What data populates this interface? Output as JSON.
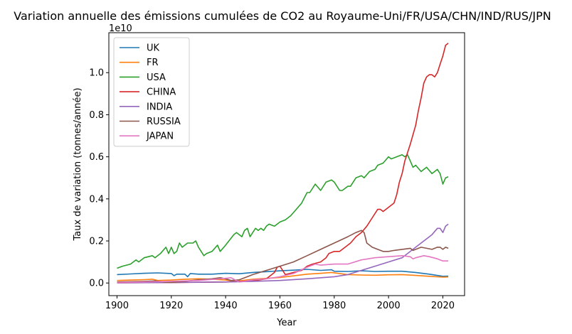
{
  "chart_data": {
    "type": "line",
    "title": "Variation annuelle des émissions cumulées de CO2 au Royaume-Uni/FR/USA/CHN/IND/RUS/JPN",
    "xlabel": "Year",
    "ylabel": "Taux de variation (tonnes/année)",
    "y_offset_label": "1e10",
    "xlim": [
      1897,
      2028
    ],
    "ylim": [
      -0.06,
      1.19
    ],
    "x_ticks": [
      1900,
      1920,
      1940,
      1960,
      1980,
      2000,
      2020
    ],
    "x_tick_labels": [
      "1900",
      "1920",
      "1940",
      "1960",
      "1980",
      "2000",
      "2020"
    ],
    "y_ticks": [
      0,
      0.2,
      0.4,
      0.6,
      0.8,
      1.0
    ],
    "y_tick_labels": [
      "0.0",
      "0.2",
      "0.4",
      "0.6",
      "0.8",
      "1.0"
    ],
    "grid": false,
    "legend_position": "upper-left",
    "series": [
      {
        "name": "UK",
        "color": "#1f77b4",
        "points": [
          [
            1900,
            0.04
          ],
          [
            1905,
            0.043
          ],
          [
            1910,
            0.046
          ],
          [
            1915,
            0.048
          ],
          [
            1920,
            0.045
          ],
          [
            1921,
            0.035
          ],
          [
            1922,
            0.042
          ],
          [
            1925,
            0.042
          ],
          [
            1926,
            0.03
          ],
          [
            1927,
            0.045
          ],
          [
            1930,
            0.042
          ],
          [
            1935,
            0.042
          ],
          [
            1940,
            0.046
          ],
          [
            1945,
            0.044
          ],
          [
            1950,
            0.05
          ],
          [
            1955,
            0.054
          ],
          [
            1960,
            0.058
          ],
          [
            1965,
            0.061
          ],
          [
            1970,
            0.065
          ],
          [
            1975,
            0.06
          ],
          [
            1979,
            0.063
          ],
          [
            1980,
            0.056
          ],
          [
            1985,
            0.055
          ],
          [
            1990,
            0.058
          ],
          [
            1995,
            0.055
          ],
          [
            2000,
            0.056
          ],
          [
            2005,
            0.056
          ],
          [
            2010,
            0.05
          ],
          [
            2015,
            0.042
          ],
          [
            2020,
            0.032
          ],
          [
            2022,
            0.033
          ]
        ]
      },
      {
        "name": "FR",
        "color": "#ff7f0e",
        "points": [
          [
            1900,
            0.012
          ],
          [
            1905,
            0.014
          ],
          [
            1910,
            0.016
          ],
          [
            1913,
            0.018
          ],
          [
            1915,
            0.012
          ],
          [
            1920,
            0.014
          ],
          [
            1925,
            0.018
          ],
          [
            1930,
            0.02
          ],
          [
            1935,
            0.018
          ],
          [
            1940,
            0.014
          ],
          [
            1944,
            0.008
          ],
          [
            1945,
            0.01
          ],
          [
            1950,
            0.018
          ],
          [
            1955,
            0.022
          ],
          [
            1960,
            0.026
          ],
          [
            1965,
            0.034
          ],
          [
            1970,
            0.042
          ],
          [
            1975,
            0.046
          ],
          [
            1979,
            0.05
          ],
          [
            1985,
            0.04
          ],
          [
            1990,
            0.038
          ],
          [
            1995,
            0.037
          ],
          [
            2000,
            0.039
          ],
          [
            2005,
            0.04
          ],
          [
            2010,
            0.036
          ],
          [
            2015,
            0.032
          ],
          [
            2020,
            0.028
          ],
          [
            2022,
            0.029
          ]
        ]
      },
      {
        "name": "USA",
        "color": "#2ca02c",
        "points": [
          [
            1900,
            0.07
          ],
          [
            1902,
            0.08
          ],
          [
            1905,
            0.09
          ],
          [
            1907,
            0.11
          ],
          [
            1908,
            0.1
          ],
          [
            1910,
            0.12
          ],
          [
            1913,
            0.13
          ],
          [
            1914,
            0.12
          ],
          [
            1916,
            0.14
          ],
          [
            1918,
            0.17
          ],
          [
            1919,
            0.14
          ],
          [
            1920,
            0.17
          ],
          [
            1921,
            0.14
          ],
          [
            1922,
            0.15
          ],
          [
            1923,
            0.19
          ],
          [
            1924,
            0.17
          ],
          [
            1926,
            0.19
          ],
          [
            1928,
            0.19
          ],
          [
            1929,
            0.2
          ],
          [
            1930,
            0.17
          ],
          [
            1932,
            0.13
          ],
          [
            1933,
            0.14
          ],
          [
            1935,
            0.15
          ],
          [
            1937,
            0.18
          ],
          [
            1938,
            0.15
          ],
          [
            1940,
            0.18
          ],
          [
            1943,
            0.23
          ],
          [
            1944,
            0.24
          ],
          [
            1946,
            0.22
          ],
          [
            1947,
            0.25
          ],
          [
            1948,
            0.26
          ],
          [
            1949,
            0.22
          ],
          [
            1950,
            0.24
          ],
          [
            1951,
            0.26
          ],
          [
            1952,
            0.25
          ],
          [
            1953,
            0.26
          ],
          [
            1954,
            0.25
          ],
          [
            1955,
            0.27
          ],
          [
            1956,
            0.28
          ],
          [
            1958,
            0.27
          ],
          [
            1960,
            0.29
          ],
          [
            1962,
            0.3
          ],
          [
            1964,
            0.32
          ],
          [
            1966,
            0.35
          ],
          [
            1968,
            0.38
          ],
          [
            1970,
            0.43
          ],
          [
            1971,
            0.43
          ],
          [
            1973,
            0.47
          ],
          [
            1975,
            0.44
          ],
          [
            1977,
            0.48
          ],
          [
            1979,
            0.49
          ],
          [
            1980,
            0.48
          ],
          [
            1982,
            0.44
          ],
          [
            1983,
            0.44
          ],
          [
            1985,
            0.46
          ],
          [
            1986,
            0.46
          ],
          [
            1988,
            0.5
          ],
          [
            1990,
            0.51
          ],
          [
            1991,
            0.5
          ],
          [
            1993,
            0.53
          ],
          [
            1995,
            0.54
          ],
          [
            1996,
            0.56
          ],
          [
            1998,
            0.57
          ],
          [
            2000,
            0.6
          ],
          [
            2001,
            0.59
          ],
          [
            2003,
            0.6
          ],
          [
            2005,
            0.61
          ],
          [
            2006,
            0.6
          ],
          [
            2007,
            0.61
          ],
          [
            2008,
            0.58
          ],
          [
            2009,
            0.55
          ],
          [
            2010,
            0.56
          ],
          [
            2012,
            0.53
          ],
          [
            2013,
            0.54
          ],
          [
            2014,
            0.55
          ],
          [
            2016,
            0.52
          ],
          [
            2018,
            0.54
          ],
          [
            2019,
            0.52
          ],
          [
            2020,
            0.47
          ],
          [
            2021,
            0.5
          ],
          [
            2022,
            0.505
          ]
        ]
      },
      {
        "name": "CHINA",
        "color": "#d62728",
        "points": [
          [
            1900,
            0.001
          ],
          [
            1920,
            0.002
          ],
          [
            1940,
            0.005
          ],
          [
            1950,
            0.01
          ],
          [
            1955,
            0.02
          ],
          [
            1958,
            0.05
          ],
          [
            1959,
            0.075
          ],
          [
            1960,
            0.08
          ],
          [
            1961,
            0.06
          ],
          [
            1962,
            0.04
          ],
          [
            1965,
            0.05
          ],
          [
            1968,
            0.06
          ],
          [
            1970,
            0.08
          ],
          [
            1972,
            0.09
          ],
          [
            1975,
            0.1
          ],
          [
            1977,
            0.12
          ],
          [
            1978,
            0.14
          ],
          [
            1980,
            0.15
          ],
          [
            1982,
            0.15
          ],
          [
            1984,
            0.17
          ],
          [
            1986,
            0.19
          ],
          [
            1988,
            0.22
          ],
          [
            1990,
            0.24
          ],
          [
            1992,
            0.27
          ],
          [
            1994,
            0.31
          ],
          [
            1996,
            0.35
          ],
          [
            1997,
            0.35
          ],
          [
            1998,
            0.34
          ],
          [
            2000,
            0.36
          ],
          [
            2002,
            0.38
          ],
          [
            2003,
            0.42
          ],
          [
            2004,
            0.48
          ],
          [
            2005,
            0.52
          ],
          [
            2006,
            0.58
          ],
          [
            2008,
            0.66
          ],
          [
            2010,
            0.75
          ],
          [
            2011,
            0.82
          ],
          [
            2012,
            0.88
          ],
          [
            2013,
            0.95
          ],
          [
            2014,
            0.98
          ],
          [
            2015,
            0.99
          ],
          [
            2016,
            0.99
          ],
          [
            2017,
            0.98
          ],
          [
            2018,
            1.0
          ],
          [
            2019,
            1.04
          ],
          [
            2020,
            1.08
          ],
          [
            2021,
            1.13
          ],
          [
            2022,
            1.14
          ]
        ]
      },
      {
        "name": "INDIA",
        "color": "#9467bd",
        "points": [
          [
            1900,
            0.001
          ],
          [
            1920,
            0.003
          ],
          [
            1940,
            0.005
          ],
          [
            1950,
            0.008
          ],
          [
            1960,
            0.012
          ],
          [
            1970,
            0.02
          ],
          [
            1980,
            0.03
          ],
          [
            1985,
            0.04
          ],
          [
            1990,
            0.06
          ],
          [
            1995,
            0.08
          ],
          [
            2000,
            0.1
          ],
          [
            2005,
            0.12
          ],
          [
            2008,
            0.15
          ],
          [
            2010,
            0.17
          ],
          [
            2012,
            0.19
          ],
          [
            2014,
            0.21
          ],
          [
            2016,
            0.23
          ],
          [
            2018,
            0.26
          ],
          [
            2019,
            0.26
          ],
          [
            2020,
            0.24
          ],
          [
            2021,
            0.27
          ],
          [
            2022,
            0.28
          ]
        ]
      },
      {
        "name": "RUSSIA",
        "color": "#8c564b",
        "points": [
          [
            1900,
            0.005
          ],
          [
            1910,
            0.008
          ],
          [
            1914,
            0.01
          ],
          [
            1918,
            0.004
          ],
          [
            1920,
            0.003
          ],
          [
            1925,
            0.008
          ],
          [
            1930,
            0.015
          ],
          [
            1935,
            0.02
          ],
          [
            1938,
            0.025
          ],
          [
            1940,
            0.02
          ],
          [
            1942,
            0.012
          ],
          [
            1945,
            0.015
          ],
          [
            1948,
            0.03
          ],
          [
            1950,
            0.04
          ],
          [
            1955,
            0.06
          ],
          [
            1960,
            0.08
          ],
          [
            1965,
            0.1
          ],
          [
            1970,
            0.13
          ],
          [
            1975,
            0.16
          ],
          [
            1980,
            0.19
          ],
          [
            1985,
            0.22
          ],
          [
            1988,
            0.24
          ],
          [
            1990,
            0.25
          ],
          [
            1991,
            0.24
          ],
          [
            1992,
            0.19
          ],
          [
            1994,
            0.17
          ],
          [
            1996,
            0.16
          ],
          [
            1998,
            0.15
          ],
          [
            2000,
            0.15
          ],
          [
            2002,
            0.155
          ],
          [
            2005,
            0.16
          ],
          [
            2008,
            0.165
          ],
          [
            2009,
            0.155
          ],
          [
            2010,
            0.16
          ],
          [
            2012,
            0.17
          ],
          [
            2014,
            0.165
          ],
          [
            2016,
            0.16
          ],
          [
            2018,
            0.17
          ],
          [
            2019,
            0.17
          ],
          [
            2020,
            0.16
          ],
          [
            2021,
            0.17
          ],
          [
            2022,
            0.165
          ]
        ]
      },
      {
        "name": "JAPAN",
        "color": "#e377c2",
        "points": [
          [
            1900,
            0.002
          ],
          [
            1920,
            0.008
          ],
          [
            1930,
            0.012
          ],
          [
            1938,
            0.02
          ],
          [
            1942,
            0.025
          ],
          [
            1945,
            0.005
          ],
          [
            1947,
            0.008
          ],
          [
            1950,
            0.015
          ],
          [
            1955,
            0.02
          ],
          [
            1960,
            0.03
          ],
          [
            1965,
            0.045
          ],
          [
            1970,
            0.075
          ],
          [
            1973,
            0.09
          ],
          [
            1975,
            0.085
          ],
          [
            1980,
            0.09
          ],
          [
            1985,
            0.09
          ],
          [
            1990,
            0.11
          ],
          [
            1995,
            0.12
          ],
          [
            2000,
            0.125
          ],
          [
            2005,
            0.13
          ],
          [
            2008,
            0.125
          ],
          [
            2009,
            0.115
          ],
          [
            2010,
            0.12
          ],
          [
            2013,
            0.13
          ],
          [
            2015,
            0.125
          ],
          [
            2018,
            0.115
          ],
          [
            2020,
            0.105
          ],
          [
            2022,
            0.105
          ]
        ]
      }
    ]
  }
}
